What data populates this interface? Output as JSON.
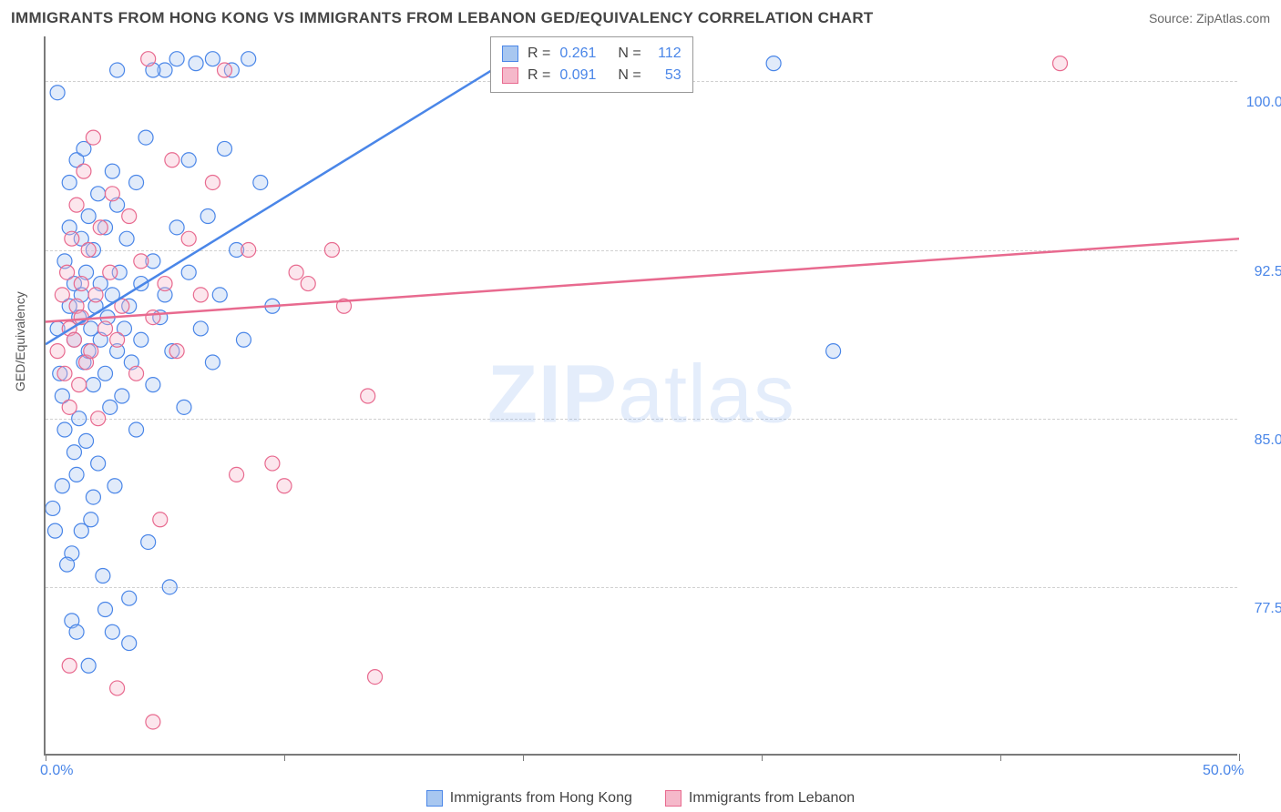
{
  "title": "IMMIGRANTS FROM HONG KONG VS IMMIGRANTS FROM LEBANON GED/EQUIVALENCY CORRELATION CHART",
  "source_label": "Source: ZipAtlas.com",
  "watermark_zip": "ZIP",
  "watermark_atlas": "atlas",
  "y_axis_label": "GED/Equivalency",
  "chart": {
    "type": "scatter",
    "xlim": [
      0,
      50
    ],
    "ylim": [
      70,
      102
    ],
    "x_ticks": [
      0,
      10,
      20,
      30,
      40,
      50
    ],
    "x_tick_labels": [
      "0.0%",
      "",
      "",
      "",
      "",
      "50.0%"
    ],
    "y_gridlines": [
      77.5,
      85.0,
      92.5,
      100.0
    ],
    "y_tick_labels": [
      "77.5%",
      "85.0%",
      "92.5%",
      "100.0%"
    ],
    "background_color": "#ffffff",
    "grid_color": "#d0d0d0",
    "axis_color": "#7a7a7a",
    "marker_radius": 8,
    "marker_stroke_width": 1.2,
    "marker_fill_opacity": 0.35,
    "series": [
      {
        "name": "Immigrants from Hong Kong",
        "color_stroke": "#4a86e8",
        "color_fill": "#a8c7f0",
        "r_label": "R =",
        "r_value": "0.261",
        "n_label": "N =",
        "n_value": "112",
        "trend": {
          "x1": 0,
          "y1": 88.3,
          "x2": 21,
          "y2": 102,
          "stroke_width": 2.5
        },
        "points": [
          [
            0.3,
            81.0
          ],
          [
            0.5,
            99.5
          ],
          [
            0.5,
            89.0
          ],
          [
            0.6,
            87.0
          ],
          [
            0.7,
            86.0
          ],
          [
            0.8,
            92.0
          ],
          [
            0.8,
            84.5
          ],
          [
            1.0,
            95.5
          ],
          [
            1.0,
            90.0
          ],
          [
            1.0,
            93.5
          ],
          [
            1.1,
            76.0
          ],
          [
            1.1,
            79.0
          ],
          [
            1.2,
            88.5
          ],
          [
            1.2,
            91.0
          ],
          [
            1.3,
            96.5
          ],
          [
            1.3,
            82.5
          ],
          [
            1.4,
            89.5
          ],
          [
            1.4,
            85.0
          ],
          [
            1.5,
            90.5
          ],
          [
            1.5,
            93.0
          ],
          [
            1.6,
            87.5
          ],
          [
            1.6,
            97.0
          ],
          [
            1.7,
            84.0
          ],
          [
            1.7,
            91.5
          ],
          [
            1.8,
            88.0
          ],
          [
            1.8,
            94.0
          ],
          [
            1.9,
            80.5
          ],
          [
            1.9,
            89.0
          ],
          [
            2.0,
            92.5
          ],
          [
            2.0,
            86.5
          ],
          [
            2.1,
            90.0
          ],
          [
            2.2,
            95.0
          ],
          [
            2.2,
            83.0
          ],
          [
            2.3,
            88.5
          ],
          [
            2.3,
            91.0
          ],
          [
            2.4,
            78.0
          ],
          [
            2.5,
            93.5
          ],
          [
            2.5,
            87.0
          ],
          [
            2.6,
            89.5
          ],
          [
            2.7,
            85.5
          ],
          [
            2.8,
            96.0
          ],
          [
            2.8,
            90.5
          ],
          [
            2.9,
            82.0
          ],
          [
            3.0,
            94.5
          ],
          [
            3.0,
            88.0
          ],
          [
            3.1,
            91.5
          ],
          [
            3.2,
            86.0
          ],
          [
            3.3,
            89.0
          ],
          [
            3.4,
            93.0
          ],
          [
            3.5,
            77.0
          ],
          [
            3.5,
            90.0
          ],
          [
            3.6,
            87.5
          ],
          [
            3.8,
            95.5
          ],
          [
            3.8,
            84.5
          ],
          [
            4.0,
            91.0
          ],
          [
            4.0,
            88.5
          ],
          [
            4.2,
            97.5
          ],
          [
            4.3,
            79.5
          ],
          [
            4.5,
            92.0
          ],
          [
            4.5,
            86.5
          ],
          [
            4.8,
            89.5
          ],
          [
            5.0,
            100.5
          ],
          [
            5.0,
            90.5
          ],
          [
            5.2,
            77.5
          ],
          [
            5.3,
            88.0
          ],
          [
            5.5,
            93.5
          ],
          [
            5.5,
            101.0
          ],
          [
            5.8,
            85.5
          ],
          [
            6.0,
            91.5
          ],
          [
            6.0,
            96.5
          ],
          [
            6.3,
            100.8
          ],
          [
            6.5,
            89.0
          ],
          [
            6.8,
            94.0
          ],
          [
            7.0,
            87.5
          ],
          [
            7.0,
            101.0
          ],
          [
            7.3,
            90.5
          ],
          [
            7.5,
            97.0
          ],
          [
            7.8,
            100.5
          ],
          [
            8.0,
            92.5
          ],
          [
            8.3,
            88.5
          ],
          [
            8.5,
            101.0
          ],
          [
            9.0,
            95.5
          ],
          [
            9.5,
            90.0
          ],
          [
            4.5,
            100.5
          ],
          [
            2.8,
            75.5
          ],
          [
            3.5,
            75.0
          ],
          [
            1.3,
            75.5
          ],
          [
            2.5,
            76.5
          ],
          [
            1.8,
            74.0
          ],
          [
            0.9,
            78.5
          ],
          [
            1.5,
            80.0
          ],
          [
            2.0,
            81.5
          ],
          [
            0.7,
            82.0
          ],
          [
            1.2,
            83.5
          ],
          [
            0.4,
            80.0
          ],
          [
            3.0,
            100.5
          ],
          [
            30.5,
            100.8
          ],
          [
            33.0,
            88.0
          ]
        ]
      },
      {
        "name": "Immigrants from Lebanon",
        "color_stroke": "#e86a8f",
        "color_fill": "#f5b8ca",
        "r_label": "R =",
        "r_value": "0.091",
        "n_label": "N =",
        "n_value": "53",
        "trend": {
          "x1": 0,
          "y1": 89.3,
          "x2": 50,
          "y2": 93.0,
          "stroke_width": 2.5
        },
        "points": [
          [
            0.5,
            88.0
          ],
          [
            0.7,
            90.5
          ],
          [
            0.8,
            87.0
          ],
          [
            0.9,
            91.5
          ],
          [
            1.0,
            89.0
          ],
          [
            1.0,
            85.5
          ],
          [
            1.1,
            93.0
          ],
          [
            1.2,
            88.5
          ],
          [
            1.3,
            90.0
          ],
          [
            1.3,
            94.5
          ],
          [
            1.4,
            86.5
          ],
          [
            1.5,
            91.0
          ],
          [
            1.5,
            89.5
          ],
          [
            1.6,
            96.0
          ],
          [
            1.7,
            87.5
          ],
          [
            1.8,
            92.5
          ],
          [
            1.9,
            88.0
          ],
          [
            2.0,
            97.5
          ],
          [
            2.1,
            90.5
          ],
          [
            2.2,
            85.0
          ],
          [
            2.3,
            93.5
          ],
          [
            2.5,
            89.0
          ],
          [
            2.7,
            91.5
          ],
          [
            2.8,
            95.0
          ],
          [
            3.0,
            88.5
          ],
          [
            3.2,
            90.0
          ],
          [
            3.5,
            94.0
          ],
          [
            3.8,
            87.0
          ],
          [
            4.0,
            92.0
          ],
          [
            4.3,
            101.0
          ],
          [
            4.5,
            89.5
          ],
          [
            4.8,
            80.5
          ],
          [
            5.0,
            91.0
          ],
          [
            5.3,
            96.5
          ],
          [
            5.5,
            88.0
          ],
          [
            6.0,
            93.0
          ],
          [
            6.5,
            90.5
          ],
          [
            7.0,
            95.5
          ],
          [
            7.5,
            100.5
          ],
          [
            8.0,
            82.5
          ],
          [
            8.5,
            92.5
          ],
          [
            9.5,
            83.0
          ],
          [
            10.0,
            82.0
          ],
          [
            10.5,
            91.5
          ],
          [
            11.0,
            91.0
          ],
          [
            12.0,
            92.5
          ],
          [
            12.5,
            90.0
          ],
          [
            13.5,
            86.0
          ],
          [
            13.8,
            73.5
          ],
          [
            3.0,
            73.0
          ],
          [
            4.5,
            71.5
          ],
          [
            1.0,
            74.0
          ],
          [
            42.5,
            100.8
          ]
        ]
      }
    ]
  },
  "legend_bottom": [
    {
      "label": "Immigrants from Hong Kong",
      "fill": "#a8c7f0",
      "stroke": "#4a86e8"
    },
    {
      "label": "Immigrants from Lebanon",
      "fill": "#f5b8ca",
      "stroke": "#e86a8f"
    }
  ]
}
